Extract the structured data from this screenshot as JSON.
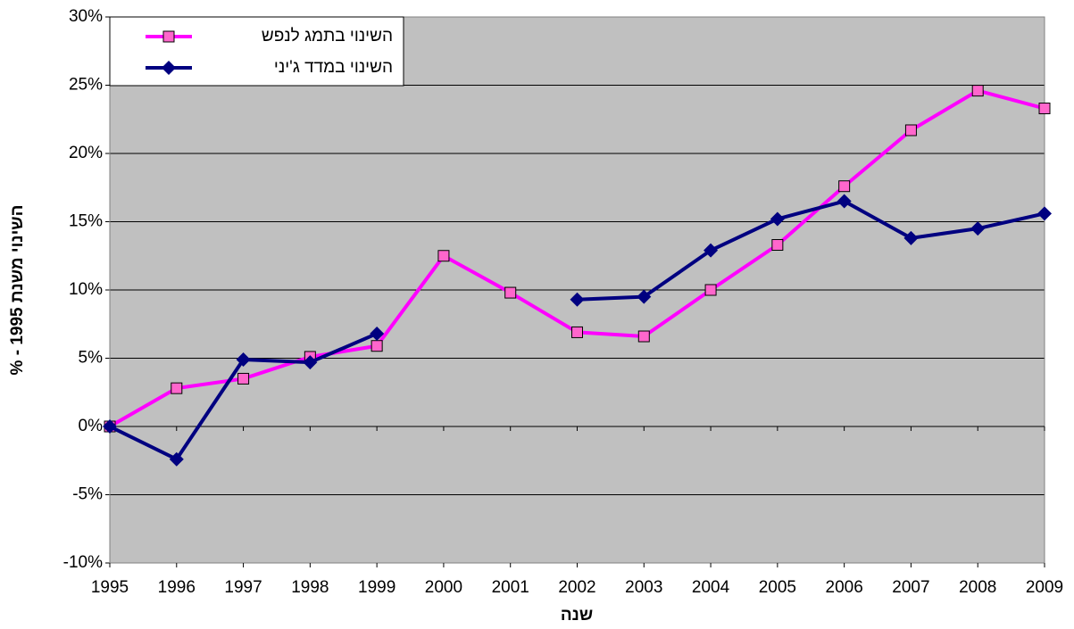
{
  "chart_data": {
    "type": "line",
    "x_label": "שנה",
    "y_label": "השינוי משנת 1995 - %",
    "x": [
      1995,
      1996,
      1997,
      1998,
      1999,
      2000,
      2001,
      2002,
      2003,
      2004,
      2005,
      2006,
      2007,
      2008,
      2009
    ],
    "xlim": [
      1995,
      2009
    ],
    "xticks": [
      1995,
      1996,
      1997,
      1998,
      1999,
      2000,
      2001,
      2002,
      2003,
      2004,
      2005,
      2006,
      2007,
      2008,
      2009
    ],
    "ylim": [
      -10,
      30
    ],
    "yticks": [
      {
        "value": -10,
        "label": "-10%"
      },
      {
        "value": -5,
        "label": "-5%"
      },
      {
        "value": 0,
        "label": "0%"
      },
      {
        "value": 5,
        "label": "5%"
      },
      {
        "value": 10,
        "label": "10%"
      },
      {
        "value": 15,
        "label": "15%"
      },
      {
        "value": 20,
        "label": "20%"
      },
      {
        "value": 25,
        "label": "25%"
      },
      {
        "value": 30,
        "label": "30%"
      }
    ],
    "grid": true,
    "legend": "top-left",
    "series": [
      {
        "name": "השינוי בתמג לנפש",
        "color": "#ff00ff",
        "marker": "square",
        "marker_color": "#ff66cc",
        "values": [
          0,
          2.8,
          3.5,
          5.1,
          5.9,
          12.5,
          9.8,
          6.9,
          6.6,
          10.0,
          13.3,
          17.6,
          21.7,
          24.6,
          23.3
        ]
      },
      {
        "name": "השינוי במדד ג'יני",
        "color": "#000080",
        "marker": "diamond",
        "marker_color": "#000080",
        "values": [
          0,
          -2.4,
          4.9,
          4.7,
          6.8,
          null,
          null,
          9.3,
          9.5,
          12.9,
          15.2,
          16.5,
          13.8,
          14.5,
          15.6
        ]
      }
    ]
  }
}
